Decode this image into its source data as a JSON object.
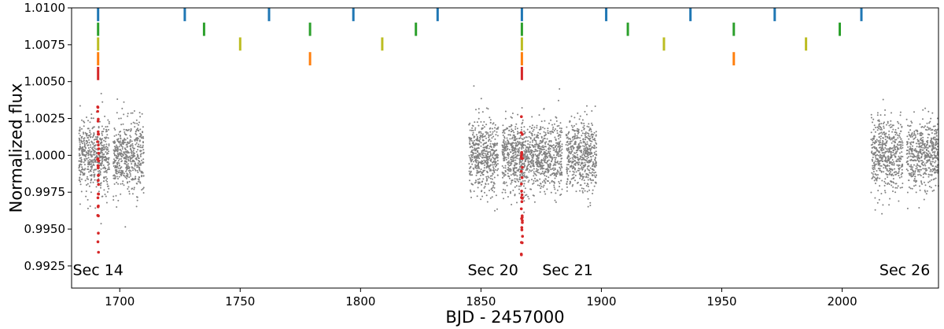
{
  "chart_data": {
    "type": "scatter",
    "title": "",
    "xlabel": "BJD - 2457000",
    "ylabel": "Normalized flux",
    "xlim": [
      1680,
      2040
    ],
    "ylim": [
      0.991,
      1.01
    ],
    "x_ticks": [
      1700,
      1750,
      1800,
      1850,
      1900,
      1950,
      2000
    ],
    "x_tick_labels": [
      "1700",
      "1750",
      "1800",
      "1850",
      "1900",
      "1950",
      "2000"
    ],
    "y_ticks": [
      0.9925,
      0.995,
      0.9975,
      1.0,
      1.0025,
      1.005,
      1.0075,
      1.01
    ],
    "y_tick_labels": [
      "0.9925",
      "0.9950",
      "0.9975",
      "1.0000",
      "1.0025",
      "1.0050",
      "1.0075",
      "1.0100"
    ],
    "grid": false,
    "sectors": [
      {
        "label": "Sec 14",
        "x_range": [
          1683,
          1710
        ],
        "label_x": 1691
      },
      {
        "label": "Sec 20",
        "x_range": [
          1845,
          1871
        ],
        "label_x": 1855
      },
      {
        "label": "Sec 21",
        "x_range": [
          1871,
          1898
        ],
        "label_x": 1886
      },
      {
        "label": "Sec 26",
        "x_range": [
          2012,
          2040
        ],
        "label_x": 2026
      }
    ],
    "flux_scatter": {
      "color": "#808080",
      "center": 1.0,
      "typical_spread": 0.0012,
      "max_excursion": 0.006
    },
    "transit_events": [
      {
        "x": 1691,
        "color": "#d62728",
        "depth_min": 0.9934
      },
      {
        "x": 1867,
        "color": "#d62728",
        "depth_min": 0.9931
      }
    ],
    "transit_marker_series": [
      {
        "color": "#1f77b4",
        "y_range": [
          1.0091,
          1.01
        ],
        "x": [
          1691,
          1727,
          1762,
          1797,
          1832,
          1867,
          1902,
          1937,
          1972,
          2008
        ]
      },
      {
        "color": "#2ca02c",
        "y_range": [
          1.0081,
          1.009
        ],
        "x": [
          1691,
          1735,
          1779,
          1823,
          1867,
          1911,
          1955,
          1999
        ]
      },
      {
        "color": "#bcbd22",
        "y_range": [
          1.0071,
          1.008
        ],
        "x": [
          1691,
          1750,
          1809,
          1867,
          1926,
          1985
        ]
      },
      {
        "color": "#ff7f0e",
        "y_range": [
          1.0061,
          1.007
        ],
        "x": [
          1691,
          1779,
          1867,
          1955
        ]
      },
      {
        "color": "#d62728",
        "y_range": [
          1.0051,
          1.006
        ],
        "x": [
          1691,
          1867
        ]
      }
    ]
  }
}
